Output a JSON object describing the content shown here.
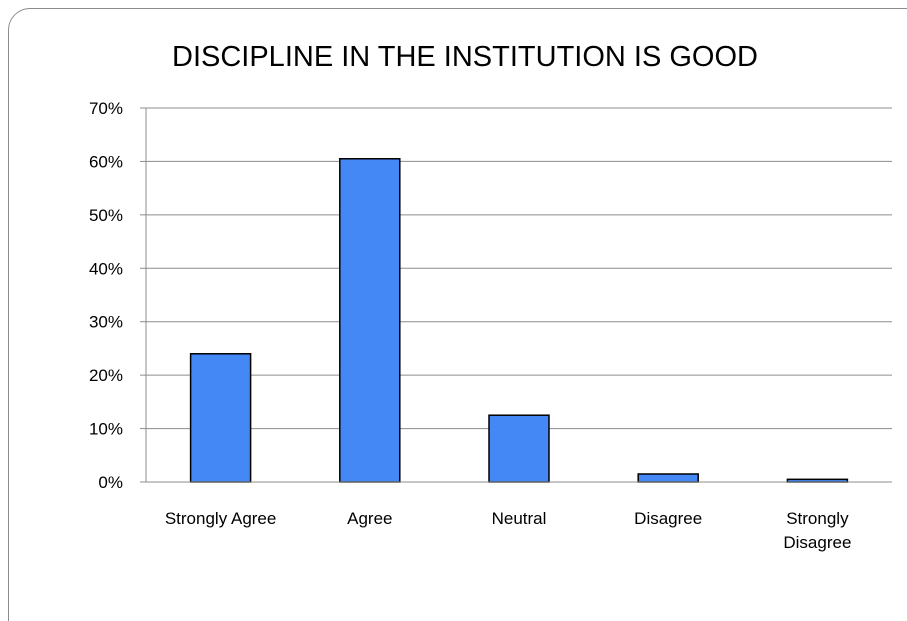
{
  "chart_data": {
    "type": "bar",
    "title": "DISCIPLINE IN THE INSTITUTION IS GOOD",
    "categories": [
      "Strongly Agree",
      "Agree",
      "Neutral",
      "Disagree",
      "Strongly Disagree"
    ],
    "values": [
      0.24,
      0.605,
      0.125,
      0.015,
      0.005
    ],
    "ylim": [
      0,
      0.7
    ],
    "yticks": [
      0,
      0.1,
      0.2,
      0.3,
      0.4,
      0.5,
      0.6,
      0.7
    ],
    "ytick_labels": [
      "0%",
      "10%",
      "20%",
      "30%",
      "40%",
      "50%",
      "60%",
      "70%"
    ],
    "grid": true,
    "legend": "none",
    "colors": {
      "bar_fill": "#4488f5",
      "bar_stroke": "#000000",
      "grid": "#8c8c8c",
      "frame": "#8c8c8c"
    }
  }
}
